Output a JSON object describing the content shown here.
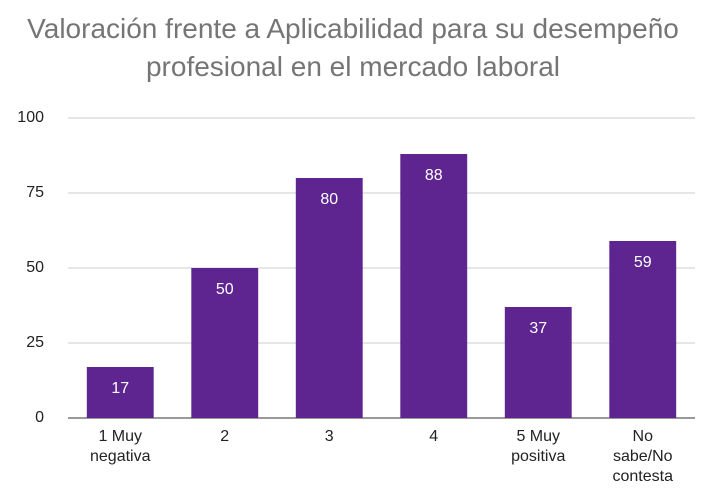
{
  "chart_data": {
    "type": "bar",
    "title": "Valoración frente a Aplicabilidad para su desempeño profesional en el mercado laboral",
    "categories": [
      "1 Muy negativa",
      "2",
      "3",
      "4",
      "5 Muy positiva",
      "No sabe/No contesta"
    ],
    "values": [
      17,
      50,
      80,
      88,
      37,
      59
    ],
    "color": "#5e2590",
    "ylim": [
      0,
      100
    ],
    "yticks": [
      0,
      25,
      50,
      75,
      100
    ],
    "grid": true
  }
}
